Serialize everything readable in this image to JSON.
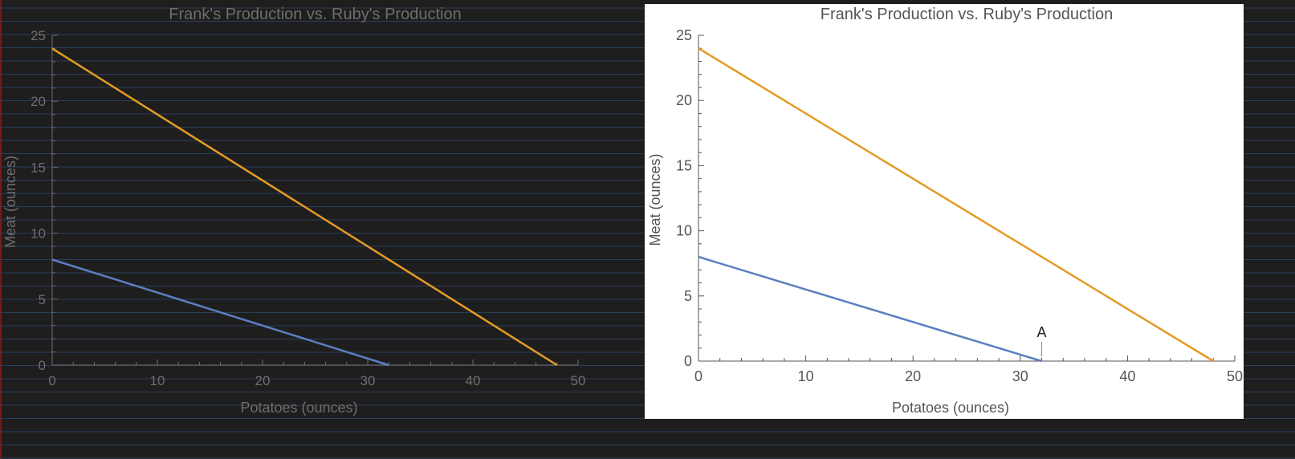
{
  "chart_data": [
    {
      "type": "line",
      "title": "Frank's Production vs. Ruby's Production",
      "xlabel": "Potatoes (ounces)",
      "ylabel": "Meat (ounces)",
      "xlim": [
        0,
        50
      ],
      "ylim": [
        0,
        25
      ],
      "x_ticks": [
        "0",
        "10",
        "20",
        "30",
        "40",
        "50"
      ],
      "y_ticks": [
        "0",
        "5",
        "10",
        "15",
        "20",
        "25"
      ],
      "series": [
        {
          "x": [
            0,
            48
          ],
          "y": [
            24,
            0
          ],
          "color": "#e39b25"
        },
        {
          "x": [
            0,
            32
          ],
          "y": [
            8,
            0
          ],
          "color": "#5b7fc0"
        }
      ],
      "theme": "dark",
      "colors": {
        "background": "#1f1e1e",
        "axis": "#6e6e6e",
        "text": "#6e6e6e",
        "grid_stripes": "#2a3f5a"
      }
    },
    {
      "type": "line",
      "title": "Frank's Production vs. Ruby's Production",
      "xlabel": "Potatoes (ounces)",
      "ylabel": "Meat (ounces)",
      "xlim": [
        0,
        50
      ],
      "ylim": [
        0,
        25
      ],
      "x_ticks": [
        "0",
        "10",
        "20",
        "30",
        "40",
        "50"
      ],
      "y_ticks": [
        "0",
        "5",
        "10",
        "15",
        "20",
        "25"
      ],
      "series": [
        {
          "x": [
            0,
            48
          ],
          "y": [
            24,
            0
          ],
          "color": "#e39b25"
        },
        {
          "x": [
            0,
            32
          ],
          "y": [
            8,
            0
          ],
          "color": "#5b7fc0"
        }
      ],
      "annotations": [
        {
          "text": "A",
          "x": 32,
          "y": 0
        }
      ],
      "theme": "light",
      "colors": {
        "background": "#ffffff",
        "axis": "#555555",
        "text": "#555555"
      }
    }
  ]
}
